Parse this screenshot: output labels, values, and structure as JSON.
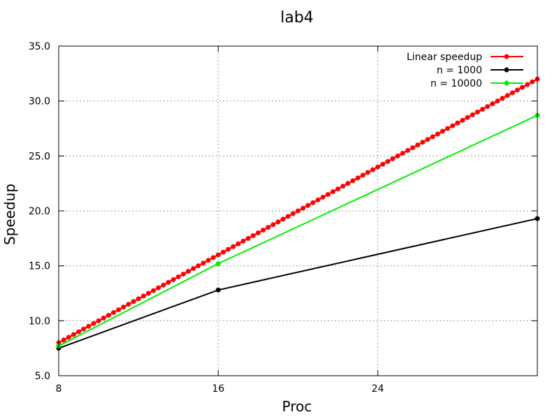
{
  "chart_data": {
    "type": "line",
    "title": "lab4",
    "xlabel": "Proc",
    "ylabel": "Speedup",
    "xlim": [
      8,
      32
    ],
    "ylim": [
      5,
      35
    ],
    "x_ticks": [
      8,
      16,
      24
    ],
    "x_tick_labels": [
      "8",
      "16",
      "24"
    ],
    "y_ticks": [
      5,
      10,
      15,
      20,
      25,
      30,
      35
    ],
    "y_tick_labels": [
      "5.0",
      "10.0",
      "15.0",
      "20.0",
      "25.0",
      "30.0",
      "35.0"
    ],
    "grid": true,
    "legend_position": "top-right",
    "series": [
      {
        "name": "Linear speedup",
        "color": "#ff0000",
        "x_range": [
          8,
          32
        ],
        "x_step": 0.25,
        "y_equals_x": true
      },
      {
        "name": "n = 1000",
        "color": "#000000",
        "x": [
          8,
          16,
          32
        ],
        "values": [
          7.5,
          12.8,
          19.3
        ]
      },
      {
        "name": "n = 10000",
        "color": "#00ee00",
        "x": [
          8,
          16,
          32
        ],
        "values": [
          7.7,
          15.2,
          28.7
        ]
      }
    ]
  }
}
